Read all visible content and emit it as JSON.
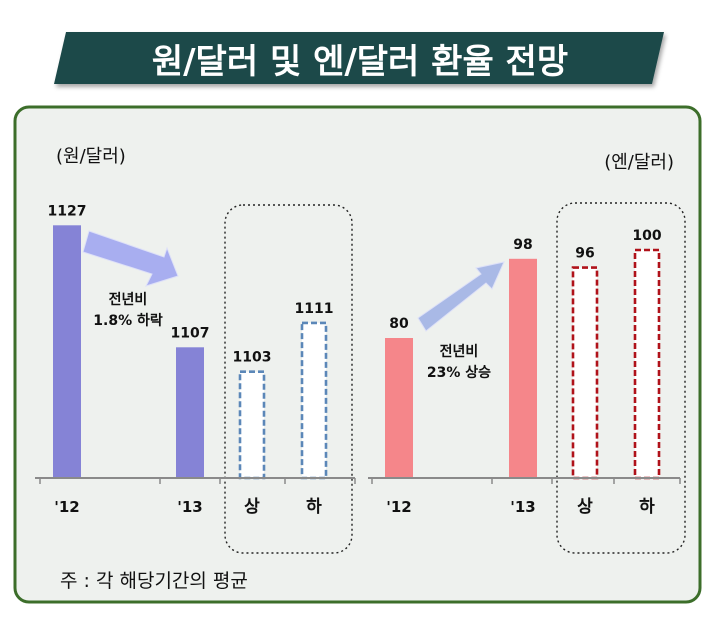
{
  "title": "원/달러 및 엔/달러 환율 전망",
  "footnote": "주 : 각 해당기간의 평균",
  "colors": {
    "banner": "#1f4a4a",
    "panel_border": "#3c6e2a",
    "panel_bg": "#eef1ee",
    "krw_bar": "#8583d6",
    "krw_dash": "#5b87b8",
    "krw_arrow": "#a8aef0",
    "jpy_bar": "#f5868a",
    "jpy_dash": "#b0121a",
    "jpy_arrow": "#a9b9e6"
  },
  "chart_data": [
    {
      "type": "bar",
      "unit_label": "(원/달러)",
      "categories": [
        "'12",
        "'13",
        "상",
        "하"
      ],
      "values": [
        1127,
        1107,
        1103,
        1111
      ],
      "value_labels": [
        "1127",
        "1107",
        "1103",
        "1111"
      ],
      "forecast": [
        false,
        false,
        true,
        true
      ],
      "annotation": [
        "전년비",
        "1.8% 하락"
      ]
    },
    {
      "type": "bar",
      "unit_label": "(엔/달러)",
      "categories": [
        "'12",
        "'13",
        "상",
        "하"
      ],
      "values": [
        80,
        98,
        96,
        100
      ],
      "value_labels": [
        "80",
        "98",
        "96",
        "100"
      ],
      "forecast": [
        false,
        false,
        true,
        true
      ],
      "annotation": [
        "전년비",
        "23% 상승"
      ]
    }
  ]
}
